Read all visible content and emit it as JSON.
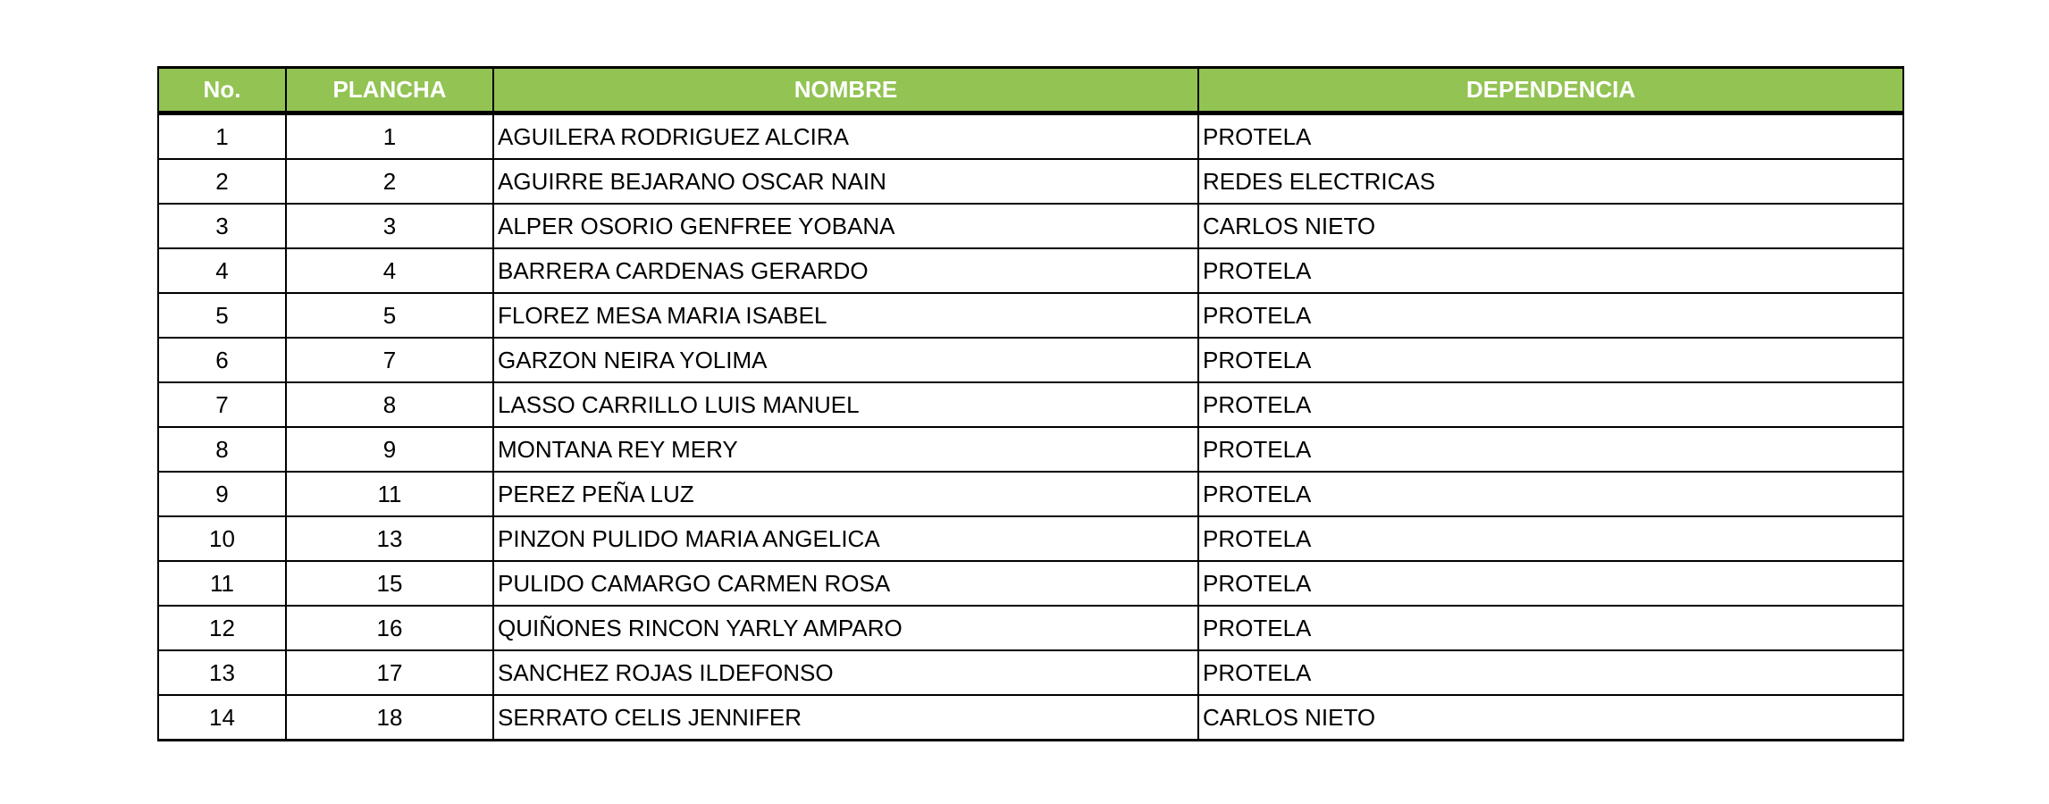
{
  "header_color": "#92c353",
  "columns": [
    "No.",
    "PLANCHA",
    "NOMBRE",
    "DEPENDENCIA"
  ],
  "rows": [
    [
      "1",
      "1",
      "AGUILERA RODRIGUEZ ALCIRA",
      "PROTELA"
    ],
    [
      "2",
      "2",
      "AGUIRRE BEJARANO OSCAR NAIN",
      "REDES ELECTRICAS"
    ],
    [
      "3",
      "3",
      "ALPER OSORIO GENFREE YOBANA",
      "CARLOS NIETO"
    ],
    [
      "4",
      "4",
      "BARRERA CARDENAS GERARDO",
      "PROTELA"
    ],
    [
      "5",
      "5",
      "FLOREZ MESA MARIA ISABEL",
      "PROTELA"
    ],
    [
      "6",
      "7",
      "GARZON NEIRA YOLIMA",
      "PROTELA"
    ],
    [
      "7",
      "8",
      "LASSO CARRILLO LUIS MANUEL",
      "PROTELA"
    ],
    [
      "8",
      "9",
      "MONTANA REY MERY",
      "PROTELA"
    ],
    [
      "9",
      "11",
      "PEREZ PEÑA LUZ",
      "PROTELA"
    ],
    [
      "10",
      "13",
      "PINZON PULIDO MARIA ANGELICA",
      "PROTELA"
    ],
    [
      "11",
      "15",
      "PULIDO CAMARGO CARMEN ROSA",
      "PROTELA"
    ],
    [
      "12",
      "16",
      "QUIÑONES RINCON YARLY AMPARO",
      "PROTELA"
    ],
    [
      "13",
      "17",
      "SANCHEZ ROJAS ILDEFONSO",
      "PROTELA"
    ],
    [
      "14",
      "18",
      "SERRATO CELIS JENNIFER",
      "CARLOS NIETO"
    ]
  ]
}
